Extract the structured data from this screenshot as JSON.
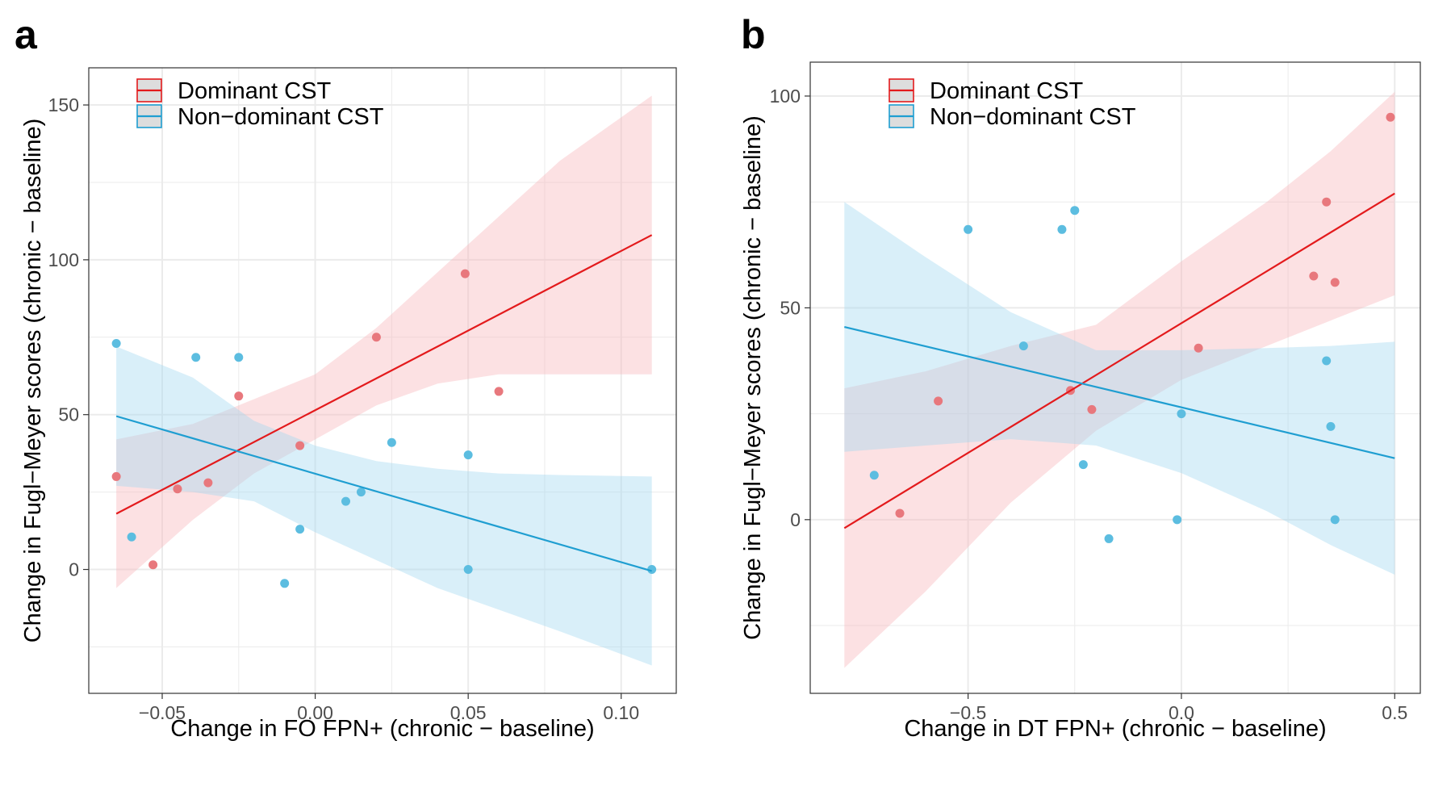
{
  "colors": {
    "dominant": "#e31a1c",
    "dominant_fill": "#f8b4b8",
    "dominant_point": "#e8787d",
    "nondominant": "#1f9ed1",
    "nondominant_fill": "#9fd8ef",
    "nondominant_point": "#5cbde0",
    "grid": "#ebebeb",
    "axis": "#333333"
  },
  "chart_data": [
    {
      "panel_label": "a",
      "type": "scatter",
      "title": "",
      "xlabel": "Change in FO FPN+ (chronic − baseline)",
      "ylabel": "Change in Fugl−Meyer scores (chronic − baseline)",
      "xlim": [
        -0.074,
        0.118
      ],
      "ylim": [
        -40,
        162
      ],
      "x_ticks": [
        -0.05,
        0.0,
        0.05,
        0.1
      ],
      "x_tick_labels": [
        "−0.05",
        "0.00",
        "0.05",
        "0.10"
      ],
      "y_ticks": [
        0,
        50,
        100,
        150
      ],
      "y_tick_labels": [
        "0",
        "50",
        "100",
        "150"
      ],
      "grid": true,
      "legend_position": "top-left",
      "series": [
        {
          "name": "Dominant CST",
          "color_key": "dominant",
          "points": [
            {
              "x": -0.065,
              "y": 30
            },
            {
              "x": -0.053,
              "y": 1.5
            },
            {
              "x": -0.045,
              "y": 26
            },
            {
              "x": -0.035,
              "y": 28
            },
            {
              "x": -0.025,
              "y": 56
            },
            {
              "x": -0.005,
              "y": 40
            },
            {
              "x": 0.02,
              "y": 75
            },
            {
              "x": 0.049,
              "y": 95.5
            },
            {
              "x": 0.06,
              "y": 57.5
            }
          ],
          "fit": {
            "x": [
              -0.065,
              0.11
            ],
            "y": [
              18,
              108
            ]
          },
          "band": [
            {
              "x": -0.065,
              "lo": -6,
              "hi": 42
            },
            {
              "x": -0.04,
              "lo": 16,
              "hi": 47
            },
            {
              "x": -0.02,
              "lo": 31,
              "hi": 55
            },
            {
              "x": 0.0,
              "lo": 42,
              "hi": 63
            },
            {
              "x": 0.02,
              "lo": 53,
              "hi": 78
            },
            {
              "x": 0.04,
              "lo": 60,
              "hi": 96
            },
            {
              "x": 0.06,
              "lo": 63,
              "hi": 114
            },
            {
              "x": 0.08,
              "lo": 63,
              "hi": 132
            },
            {
              "x": 0.11,
              "lo": 63,
              "hi": 153
            }
          ]
        },
        {
          "name": "Non−dominant CST",
          "color_key": "nondominant",
          "points": [
            {
              "x": -0.065,
              "y": 73
            },
            {
              "x": -0.06,
              "y": 10.5
            },
            {
              "x": -0.039,
              "y": 68.5
            },
            {
              "x": -0.025,
              "y": 68.5
            },
            {
              "x": -0.01,
              "y": -4.5
            },
            {
              "x": -0.005,
              "y": 13
            },
            {
              "x": 0.01,
              "y": 22
            },
            {
              "x": 0.015,
              "y": 25
            },
            {
              "x": 0.025,
              "y": 41
            },
            {
              "x": 0.05,
              "y": 37
            },
            {
              "x": 0.05,
              "y": 0
            },
            {
              "x": 0.11,
              "y": 0
            }
          ],
          "fit": {
            "x": [
              -0.065,
              0.11
            ],
            "y": [
              49.5,
              -0.5
            ]
          },
          "band": [
            {
              "x": -0.065,
              "lo": 27,
              "hi": 72
            },
            {
              "x": -0.04,
              "lo": 25,
              "hi": 62
            },
            {
              "x": -0.02,
              "lo": 22,
              "hi": 48
            },
            {
              "x": 0.0,
              "lo": 12,
              "hi": 40
            },
            {
              "x": 0.02,
              "lo": 3,
              "hi": 35
            },
            {
              "x": 0.04,
              "lo": -6,
              "hi": 32.5
            },
            {
              "x": 0.06,
              "lo": -13,
              "hi": 31
            },
            {
              "x": 0.08,
              "lo": -20,
              "hi": 30.5
            },
            {
              "x": 0.11,
              "lo": -31,
              "hi": 30
            }
          ]
        }
      ]
    },
    {
      "panel_label": "b",
      "type": "scatter",
      "title": "",
      "xlabel": "Change in DT FPN+ (chronic − baseline)",
      "ylabel": "Change in Fugl−Meyer scores (chronic − baseline)",
      "xlim": [
        -0.87,
        0.56
      ],
      "ylim": [
        -41,
        108
      ],
      "x_ticks": [
        -0.5,
        0.0,
        0.5
      ],
      "x_tick_labels": [
        "−0.5",
        "0.0",
        "0.5"
      ],
      "y_ticks": [
        0,
        50,
        100
      ],
      "y_tick_labels": [
        "0",
        "50",
        "100"
      ],
      "grid": true,
      "legend_position": "top-left",
      "series": [
        {
          "name": "Dominant CST",
          "color_key": "dominant",
          "points": [
            {
              "x": -0.66,
              "y": 1.5
            },
            {
              "x": -0.57,
              "y": 28
            },
            {
              "x": -0.26,
              "y": 30.5
            },
            {
              "x": -0.21,
              "y": 26
            },
            {
              "x": 0.04,
              "y": 40.5
            },
            {
              "x": 0.31,
              "y": 57.5
            },
            {
              "x": 0.34,
              "y": 75
            },
            {
              "x": 0.36,
              "y": 56
            },
            {
              "x": 0.49,
              "y": 95
            }
          ],
          "fit": {
            "x": [
              -0.79,
              0.5
            ],
            "y": [
              -2,
              77
            ]
          },
          "band": [
            {
              "x": -0.79,
              "lo": -35,
              "hi": 31
            },
            {
              "x": -0.6,
              "lo": -17,
              "hi": 35
            },
            {
              "x": -0.4,
              "lo": 4,
              "hi": 41
            },
            {
              "x": -0.2,
              "lo": 21,
              "hi": 46
            },
            {
              "x": 0.0,
              "lo": 33,
              "hi": 61
            },
            {
              "x": 0.2,
              "lo": 41,
              "hi": 75
            },
            {
              "x": 0.35,
              "lo": 47,
              "hi": 87
            },
            {
              "x": 0.5,
              "lo": 53,
              "hi": 101
            }
          ]
        },
        {
          "name": "Non−dominant CST",
          "color_key": "nondominant",
          "points": [
            {
              "x": -0.72,
              "y": 10.5
            },
            {
              "x": -0.5,
              "y": 68.5
            },
            {
              "x": -0.37,
              "y": 41
            },
            {
              "x": -0.28,
              "y": 68.5
            },
            {
              "x": -0.25,
              "y": 73
            },
            {
              "x": -0.23,
              "y": 13
            },
            {
              "x": -0.17,
              "y": -4.5
            },
            {
              "x": -0.01,
              "y": 0
            },
            {
              "x": 0.0,
              "y": 25
            },
            {
              "x": 0.34,
              "y": 37.5
            },
            {
              "x": 0.35,
              "y": 22
            },
            {
              "x": 0.36,
              "y": 0
            }
          ],
          "fit": {
            "x": [
              -0.79,
              0.5
            ],
            "y": [
              45.5,
              14.5
            ]
          },
          "band": [
            {
              "x": -0.79,
              "lo": 16,
              "hi": 75
            },
            {
              "x": -0.6,
              "lo": 17.5,
              "hi": 62
            },
            {
              "x": -0.4,
              "lo": 19,
              "hi": 49
            },
            {
              "x": -0.2,
              "lo": 17.5,
              "hi": 40
            },
            {
              "x": 0.0,
              "lo": 11,
              "hi": 40
            },
            {
              "x": 0.2,
              "lo": 2,
              "hi": 40.5
            },
            {
              "x": 0.35,
              "lo": -6,
              "hi": 41
            },
            {
              "x": 0.5,
              "lo": -13,
              "hi": 42
            }
          ]
        }
      ]
    }
  ]
}
